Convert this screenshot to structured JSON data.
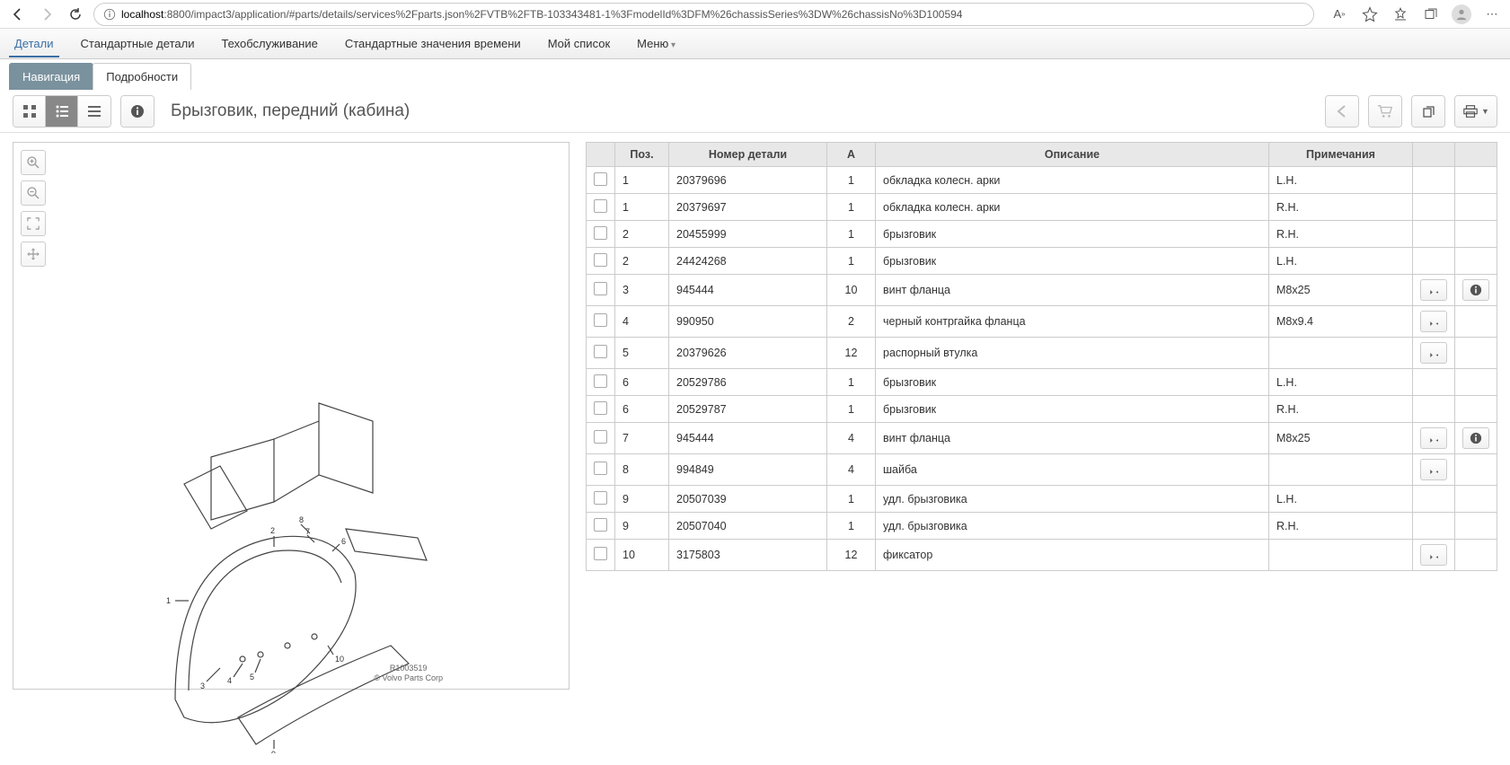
{
  "browser": {
    "url_host": "localhost",
    "url_path": ":8800/impact3/application/#parts/details/services%2Fparts.json%2FVTB%2FTB-103343481-1%3FmodelId%3DFM%26chassisSeries%3DW%26chassisNo%3D100594"
  },
  "nav": {
    "items": [
      "Детали",
      "Стандартные детали",
      "Техобслуживание",
      "Стандартные значения времени",
      "Мой список",
      "Меню"
    ],
    "active_index": 0,
    "menu_index": 5
  },
  "tabs": {
    "items": [
      "Навигация",
      "Подробности"
    ],
    "active_index": 1
  },
  "page_title": "Брызговик, передний (кабина)",
  "diagram": {
    "ref": "R1003519",
    "copyright": "© Volvo Parts Corp"
  },
  "table": {
    "headers": {
      "pos": "Поз.",
      "pn": "Номер детали",
      "qty": "А",
      "desc": "Описание",
      "note": "Примечания"
    },
    "rows": [
      {
        "pos": "1",
        "pn": "20379696",
        "qty": "1",
        "desc": "обкладка колесн. арки",
        "note": "L.H.",
        "pin": false,
        "info": false
      },
      {
        "pos": "1",
        "pn": "20379697",
        "qty": "1",
        "desc": "обкладка колесн. арки",
        "note": "R.H.",
        "pin": false,
        "info": false
      },
      {
        "pos": "2",
        "pn": "20455999",
        "qty": "1",
        "desc": "брызговик",
        "note": "R.H.",
        "pin": false,
        "info": false
      },
      {
        "pos": "2",
        "pn": "24424268",
        "qty": "1",
        "desc": "брызговик",
        "note": "L.H.",
        "pin": false,
        "info": false
      },
      {
        "pos": "3",
        "pn": "945444",
        "qty": "10",
        "desc": "винт фланца",
        "note": "M8x25",
        "pin": true,
        "info": true
      },
      {
        "pos": "4",
        "pn": "990950",
        "qty": "2",
        "desc": "черный контргайка фланца",
        "note": "M8x9.4",
        "pin": true,
        "info": false
      },
      {
        "pos": "5",
        "pn": "20379626",
        "qty": "12",
        "desc": "распорный втулка",
        "note": "",
        "pin": true,
        "info": false
      },
      {
        "pos": "6",
        "pn": "20529786",
        "qty": "1",
        "desc": "брызговик",
        "note": "L.H.",
        "pin": false,
        "info": false
      },
      {
        "pos": "6",
        "pn": "20529787",
        "qty": "1",
        "desc": "брызговик",
        "note": "R.H.",
        "pin": false,
        "info": false
      },
      {
        "pos": "7",
        "pn": "945444",
        "qty": "4",
        "desc": "винт фланца",
        "note": "M8x25",
        "pin": true,
        "info": true
      },
      {
        "pos": "8",
        "pn": "994849",
        "qty": "4",
        "desc": "шайба",
        "note": "",
        "pin": true,
        "info": false
      },
      {
        "pos": "9",
        "pn": "20507039",
        "qty": "1",
        "desc": "удл. брызговика",
        "note": "L.H.",
        "pin": false,
        "info": false
      },
      {
        "pos": "9",
        "pn": "20507040",
        "qty": "1",
        "desc": "удл. брызговика",
        "note": "R.H.",
        "pin": false,
        "info": false
      },
      {
        "pos": "10",
        "pn": "3175803",
        "qty": "12",
        "desc": "фиксатор",
        "note": "",
        "pin": true,
        "info": false
      }
    ]
  },
  "colors": {
    "accent": "#3a6fa5",
    "header_bg": "#e8e8e8",
    "border": "#cccccc"
  }
}
